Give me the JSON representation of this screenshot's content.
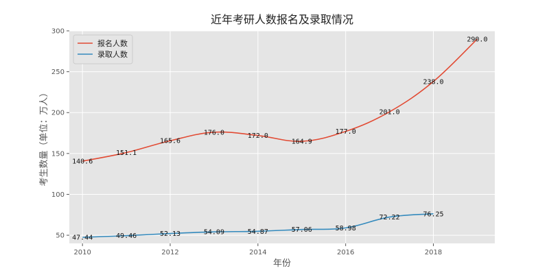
{
  "chart_data": {
    "type": "line",
    "title": "近年考研人数报名及录取情况",
    "xlabel": "年份",
    "ylabel": "考生数量（单位：万人）",
    "xlim": [
      2009.7,
      2019.4
    ],
    "ylim": [
      40,
      300
    ],
    "x_ticks": [
      "2010",
      "2012",
      "2014",
      "2016",
      "2018"
    ],
    "y_ticks": [
      "50",
      "100",
      "150",
      "200",
      "250",
      "300"
    ],
    "grid": true,
    "legend_position": "top-left",
    "series": [
      {
        "name": "报名人数",
        "color": "#e24a33",
        "x": [
          2010,
          2011,
          2012,
          2013,
          2014,
          2015,
          2016,
          2017,
          2018,
          2019
        ],
        "values": [
          140.6,
          151.1,
          165.6,
          176.0,
          172.0,
          164.9,
          177.0,
          201.0,
          238.0,
          290.0
        ],
        "labels": [
          "140.6",
          "151.1",
          "165.6",
          "176.0",
          "172.0",
          "164.9",
          "177.0",
          "201.0",
          "238.0",
          "290.0"
        ]
      },
      {
        "name": "录取人数",
        "color": "#348abd",
        "x": [
          2010,
          2011,
          2012,
          2013,
          2014,
          2015,
          2016,
          2017,
          2018
        ],
        "values": [
          47.44,
          49.46,
          52.13,
          54.09,
          54.87,
          57.06,
          58.98,
          72.22,
          76.25
        ],
        "labels": [
          "47.44",
          "49.46",
          "52.13",
          "54.09",
          "54.87",
          "57.06",
          "58.98",
          "72.22",
          "76.25"
        ]
      }
    ]
  },
  "colors": {
    "plot_background": "#e5e5e5",
    "grid": "#ffffff"
  }
}
